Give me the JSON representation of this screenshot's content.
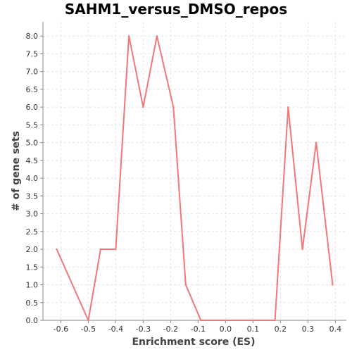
{
  "chart_data": {
    "type": "line",
    "title": "SAHM1_versus_DMSO_repos",
    "xlabel": "Enrichment score (ES)",
    "ylabel": "# of gene sets",
    "xlim": [
      -0.665,
      0.44
    ],
    "ylim": [
      0,
      8.4
    ],
    "x_ticks": [
      -0.6,
      -0.5,
      -0.4,
      -0.3,
      -0.2,
      -0.1,
      0.0,
      0.1,
      0.2,
      0.3,
      0.4
    ],
    "x_tick_labels": [
      "-0.6",
      "-0.5",
      "-0.4",
      "-0.3",
      "-0.2",
      "-0.1",
      "0.0",
      "0.1",
      "0.2",
      "0.3",
      "0.4"
    ],
    "y_ticks": [
      0,
      0.5,
      1,
      1.5,
      2,
      2.5,
      3,
      3.5,
      4,
      4.5,
      5,
      5.5,
      6,
      6.5,
      7,
      7.5,
      8
    ],
    "y_tick_labels": [
      "0.0",
      "0.5",
      "1.0",
      "1.5",
      "2.0",
      "2.5",
      "3.0",
      "3.5",
      "4.0",
      "4.5",
      "5.0",
      "5.5",
      "6.0",
      "6.5",
      "7.0",
      "7.5",
      "8.0"
    ],
    "grid": true,
    "series": [
      {
        "color": "#f07878",
        "x": [
          -0.615,
          -0.5,
          -0.455,
          -0.4,
          -0.352,
          -0.3,
          -0.25,
          -0.19,
          -0.145,
          -0.09,
          0.0,
          0.18,
          0.228,
          0.28,
          0.33,
          0.39
        ],
        "y": [
          2,
          0,
          2,
          2,
          8,
          6,
          8,
          6,
          1,
          0,
          0,
          0,
          6,
          2,
          5,
          1
        ]
      }
    ]
  }
}
